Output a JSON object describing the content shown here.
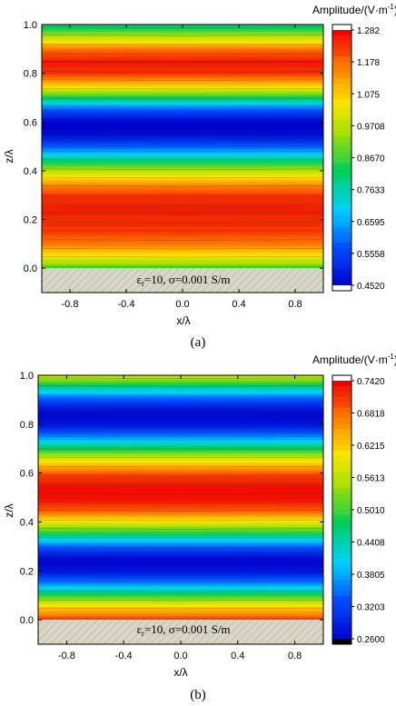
{
  "chart_data": [
    {
      "type": "heatmap",
      "panel_label": "(a)",
      "xlabel": "x/λ",
      "ylabel": "z/λ",
      "xlim": [
        -1.0,
        1.0
      ],
      "ylim": [
        -0.1,
        1.0
      ],
      "xticks": [
        "-0.8",
        "-0.4",
        "0.0",
        "0.4",
        "0.8"
      ],
      "yticks": [
        "0.0",
        "0.2",
        "0.4",
        "0.6",
        "0.8",
        "1.0"
      ],
      "colorbar_title": "Amplitude/(V·m",
      "colorbar_title_exp": "-1",
      "colorbar_title_close": ")",
      "colorbar_ticks": [
        "1.282",
        "1.178",
        "1.075",
        "0.9708",
        "0.8670",
        "0.7633",
        "0.6595",
        "0.5558",
        "0.4520"
      ],
      "vmin": 0.452,
      "vmax": 1.282,
      "ground": {
        "z_top": 0.0,
        "eps_symbol": "ε",
        "eps_sub": "r",
        "label_rest": "=10, σ=0.001 S/m"
      },
      "profile_z": [
        0.0,
        0.05,
        0.1,
        0.15,
        0.2,
        0.25,
        0.3,
        0.35,
        0.4,
        0.45,
        0.5,
        0.55,
        0.6,
        0.65,
        0.7,
        0.75,
        0.8,
        0.85,
        0.9,
        0.95,
        1.0
      ],
      "profile_amplitude": [
        0.87,
        1.05,
        1.17,
        1.23,
        1.25,
        1.26,
        1.24,
        1.14,
        0.98,
        0.79,
        0.6,
        0.47,
        0.46,
        0.58,
        0.83,
        1.08,
        1.24,
        1.27,
        1.18,
        0.98,
        0.79
      ]
    },
    {
      "type": "heatmap",
      "panel_label": "(b)",
      "xlabel": "x/λ",
      "ylabel": "z/λ",
      "xlim": [
        -1.0,
        1.0
      ],
      "ylim": [
        -0.1,
        1.0
      ],
      "xticks": [
        "-0.8",
        "-0.4",
        "0.0",
        "0.4",
        "0.8"
      ],
      "yticks": [
        "0.0",
        "0.2",
        "0.4",
        "0.6",
        "0.8",
        "1.0"
      ],
      "colorbar_title": "Amplitude/(V·m",
      "colorbar_title_exp": "-1",
      "colorbar_title_close": ")",
      "colorbar_ticks": [
        "0.7420",
        "0.6818",
        "0.6215",
        "0.5613",
        "0.5010",
        "0.4408",
        "0.3805",
        "0.3203",
        "0.2600"
      ],
      "vmin": 0.26,
      "vmax": 0.742,
      "ground": {
        "z_top": 0.0,
        "eps_symbol": "ε",
        "eps_sub": "r",
        "label_rest": "=10, σ=0.001 S/m"
      },
      "profile_z": [
        0.0,
        0.05,
        0.1,
        0.15,
        0.2,
        0.25,
        0.3,
        0.35,
        0.4,
        0.45,
        0.5,
        0.55,
        0.6,
        0.65,
        0.7,
        0.75,
        0.8,
        0.85,
        0.9,
        0.95,
        1.0
      ],
      "profile_amplitude": [
        0.71,
        0.63,
        0.5,
        0.37,
        0.28,
        0.27,
        0.34,
        0.47,
        0.6,
        0.7,
        0.74,
        0.74,
        0.7,
        0.61,
        0.49,
        0.37,
        0.28,
        0.27,
        0.33,
        0.45,
        0.58
      ]
    }
  ]
}
